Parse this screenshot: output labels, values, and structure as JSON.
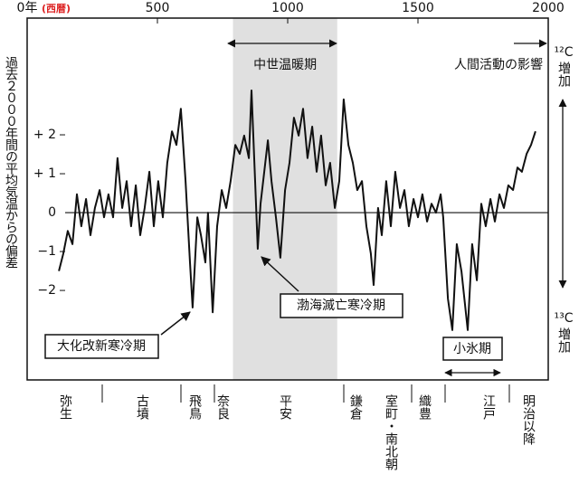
{
  "chart_data": {
    "type": "line",
    "ylabel": "過去２０００年間の平均気温からの偏差",
    "xlabel_note": "(西暦)",
    "xlim": [
      0,
      2000
    ],
    "xticks": [
      {
        "value": 0,
        "label": "0年"
      },
      500,
      1000,
      1500,
      2000
    ],
    "ylim": [
      -4.3,
      5
    ],
    "yticks": [
      {
        "value": 2,
        "label": "+ 2"
      },
      {
        "value": 1,
        "label": "+ 1"
      },
      0,
      {
        "value": -1,
        "label": "−1"
      },
      {
        "value": -2,
        "label": "−2"
      }
    ],
    "shaded_xrange": [
      790,
      1190
    ],
    "shaded_label": "中世温暖期",
    "annotations": [
      "人間活動の影響",
      "大化改新寒冷期",
      "渤海滅亡寒冷期",
      "小氷期"
    ],
    "right_top": [
      "¹²C",
      "増加"
    ],
    "right_bottom": [
      "¹³C",
      "増加"
    ],
    "eras": [
      "弥生",
      "古墳",
      "飛鳥",
      "奈良",
      "平安",
      "鎌倉",
      "室町・南北朝",
      "織豊",
      "江戸",
      "明治以降"
    ],
    "color": "#111111",
    "x": [
      122,
      139,
      156,
      174,
      191,
      208,
      226,
      243,
      260,
      278,
      295,
      312,
      330,
      347,
      365,
      382,
      399,
      417,
      434,
      451,
      469,
      486,
      503,
      521,
      538,
      556,
      573,
      590,
      608,
      625,
      635,
      653,
      667,
      684,
      694,
      712,
      729,
      747,
      764,
      781,
      799,
      816,
      833,
      851,
      861,
      875,
      885,
      896,
      910,
      924,
      938,
      955,
      972,
      990,
      1007,
      1024,
      1042,
      1059,
      1076,
      1094,
      1111,
      1128,
      1146,
      1163,
      1181,
      1198,
      1215,
      1233,
      1250,
      1267,
      1285,
      1302,
      1319,
      1330,
      1347,
      1361,
      1378,
      1396,
      1413,
      1431,
      1448,
      1465,
      1483,
      1500,
      1517,
      1535,
      1552,
      1569,
      1587,
      1597,
      1615,
      1632,
      1649,
      1667,
      1691,
      1708,
      1726,
      1743,
      1760,
      1778,
      1795,
      1813,
      1830,
      1847,
      1865,
      1882,
      1899,
      1917,
      1934,
      1951
    ],
    "values": [
      -1.5,
      -1.05,
      -0.47,
      -0.81,
      0.47,
      -0.35,
      0.35,
      -0.58,
      0.12,
      0.58,
      -0.12,
      0.47,
      -0.12,
      1.4,
      0.12,
      0.81,
      -0.35,
      0.7,
      -0.58,
      0.12,
      1.05,
      -0.35,
      0.81,
      -0.12,
      1.28,
      2.09,
      1.74,
      2.67,
      0.81,
      -1.28,
      -2.44,
      -0.12,
      -0.58,
      -1.28,
      0,
      -2.56,
      -0.35,
      0.58,
      0.12,
      0.81,
      1.74,
      1.51,
      1.98,
      1.4,
      3.14,
      0.81,
      -0.93,
      0.23,
      1.05,
      1.86,
      0.81,
      -0.12,
      -1.16,
      0.58,
      1.28,
      2.44,
      1.98,
      2.67,
      1.4,
      2.21,
      1.05,
      1.98,
      0.7,
      1.28,
      0.12,
      0.81,
      2.91,
      1.74,
      1.28,
      0.58,
      0.81,
      -0.35,
      -1.05,
      -1.86,
      0.12,
      -0.58,
      0.81,
      -0.35,
      1.05,
      0.12,
      0.58,
      -0.35,
      0.35,
      -0.12,
      0.47,
      -0.23,
      0.23,
      0,
      0.47,
      -0.12,
      -2.21,
      -3.02,
      -0.81,
      -1.51,
      -3.02,
      -0.81,
      -1.74,
      0.23,
      -0.35,
      0.35,
      -0.23,
      0.47,
      0.12,
      0.7,
      0.58,
      1.16,
      1.05,
      1.51,
      1.74,
      2.09
    ]
  }
}
